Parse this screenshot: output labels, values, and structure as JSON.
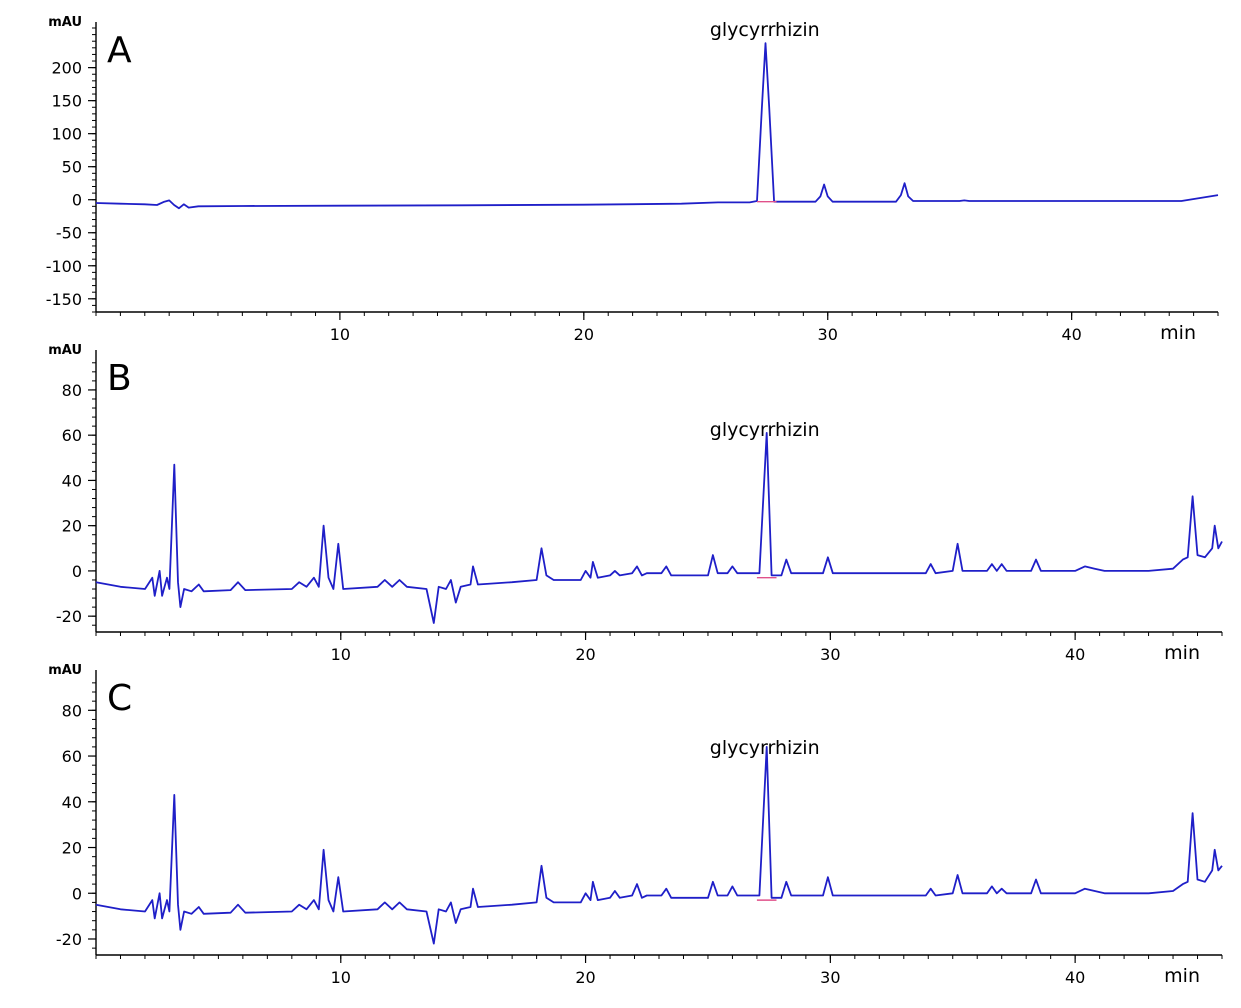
{
  "chart_data": [
    {
      "type": "line",
      "panel_label": "A",
      "ylabel": "mAU",
      "xlabel": "min",
      "xlim": [
        0,
        46
      ],
      "ylim": [
        -170,
        260
      ],
      "yticks": [
        -150,
        -100,
        -50,
        0,
        50,
        100,
        150,
        200
      ],
      "xticks": [
        10,
        20,
        30,
        40
      ],
      "annotation": {
        "text": "glycyrrhizin",
        "x": 27.5
      },
      "series": [
        {
          "color": "#1f1fc8",
          "points": [
            [
              0,
              -5
            ],
            [
              1,
              -6
            ],
            [
              2,
              -7
            ],
            [
              2.5,
              -8
            ],
            [
              2.8,
              -3
            ],
            [
              3.0,
              -1
            ],
            [
              3.2,
              -8
            ],
            [
              3.4,
              -13
            ],
            [
              3.6,
              -7
            ],
            [
              3.8,
              -12
            ],
            [
              4.2,
              -10
            ],
            [
              6,
              -9.5
            ],
            [
              10,
              -9
            ],
            [
              15,
              -8.5
            ],
            [
              20,
              -7.5
            ],
            [
              24,
              -6
            ],
            [
              25.5,
              -4
            ],
            [
              26.8,
              -4
            ],
            [
              27.1,
              -2
            ],
            [
              27.3,
              140
            ],
            [
              27.45,
              237
            ],
            [
              27.6,
              140
            ],
            [
              27.8,
              -3
            ],
            [
              28.3,
              -3
            ],
            [
              29.5,
              -3
            ],
            [
              29.7,
              5
            ],
            [
              29.85,
              23
            ],
            [
              30.0,
              5
            ],
            [
              30.2,
              -3
            ],
            [
              32.8,
              -3
            ],
            [
              33.0,
              7
            ],
            [
              33.15,
              25
            ],
            [
              33.3,
              5
            ],
            [
              33.5,
              -2
            ],
            [
              35.4,
              -2
            ],
            [
              35.6,
              -1
            ],
            [
              35.8,
              -2
            ],
            [
              44.5,
              -2
            ],
            [
              46,
              7
            ]
          ]
        }
      ]
    },
    {
      "type": "line",
      "panel_label": "B",
      "ylabel": "mAU",
      "xlabel": "min",
      "xlim": [
        0,
        46
      ],
      "ylim": [
        -27,
        95
      ],
      "yticks": [
        -20,
        0,
        20,
        40,
        60,
        80
      ],
      "xticks": [
        10,
        20,
        30,
        40
      ],
      "annotation": {
        "text": "glycyrrhizin",
        "x": 27.4
      },
      "series": [
        {
          "color": "#1f1fc8",
          "points": [
            [
              0,
              -5
            ],
            [
              1,
              -7
            ],
            [
              2,
              -8
            ],
            [
              2.3,
              -3
            ],
            [
              2.4,
              -11
            ],
            [
              2.6,
              0
            ],
            [
              2.7,
              -11
            ],
            [
              2.9,
              -3
            ],
            [
              3.0,
              -8
            ],
            [
              3.2,
              47
            ],
            [
              3.35,
              -5
            ],
            [
              3.45,
              -16
            ],
            [
              3.6,
              -8
            ],
            [
              3.9,
              -9
            ],
            [
              4.2,
              -6
            ],
            [
              4.4,
              -9
            ],
            [
              5.5,
              -8.5
            ],
            [
              5.8,
              -5
            ],
            [
              6.1,
              -8.5
            ],
            [
              8.0,
              -8
            ],
            [
              8.3,
              -5
            ],
            [
              8.6,
              -7
            ],
            [
              8.9,
              -3
            ],
            [
              9.1,
              -7
            ],
            [
              9.3,
              20
            ],
            [
              9.5,
              -3
            ],
            [
              9.7,
              -8
            ],
            [
              9.9,
              12
            ],
            [
              10.1,
              -8
            ],
            [
              11.5,
              -7
            ],
            [
              11.8,
              -4
            ],
            [
              12.1,
              -7
            ],
            [
              12.4,
              -4
            ],
            [
              12.7,
              -7
            ],
            [
              13.5,
              -8
            ],
            [
              13.8,
              -23
            ],
            [
              14.0,
              -7
            ],
            [
              14.3,
              -8
            ],
            [
              14.5,
              -4
            ],
            [
              14.7,
              -14
            ],
            [
              14.9,
              -7
            ],
            [
              15.3,
              -6
            ],
            [
              15.4,
              2
            ],
            [
              15.6,
              -6
            ],
            [
              17,
              -5
            ],
            [
              18.0,
              -4
            ],
            [
              18.2,
              10
            ],
            [
              18.4,
              -2
            ],
            [
              18.7,
              -4
            ],
            [
              19.8,
              -4
            ],
            [
              20.0,
              0
            ],
            [
              20.2,
              -3
            ],
            [
              20.3,
              4
            ],
            [
              20.5,
              -3
            ],
            [
              21.0,
              -2
            ],
            [
              21.2,
              0
            ],
            [
              21.4,
              -2
            ],
            [
              21.9,
              -1
            ],
            [
              22.1,
              2
            ],
            [
              22.3,
              -2
            ],
            [
              22.5,
              -1
            ],
            [
              23.1,
              -1
            ],
            [
              23.3,
              2
            ],
            [
              23.5,
              -2
            ],
            [
              25.0,
              -2
            ],
            [
              25.2,
              7
            ],
            [
              25.4,
              -1
            ],
            [
              25.8,
              -1
            ],
            [
              26.0,
              2
            ],
            [
              26.2,
              -1
            ],
            [
              27.1,
              -1
            ],
            [
              27.4,
              61
            ],
            [
              27.6,
              -2
            ],
            [
              28.0,
              -2
            ],
            [
              28.2,
              5
            ],
            [
              28.4,
              -1
            ],
            [
              29.7,
              -1
            ],
            [
              29.9,
              6
            ],
            [
              30.1,
              -1
            ],
            [
              32.5,
              -1
            ],
            [
              33.9,
              -1
            ],
            [
              34.1,
              3
            ],
            [
              34.3,
              -1
            ],
            [
              35.0,
              0
            ],
            [
              35.2,
              12
            ],
            [
              35.4,
              0
            ],
            [
              36.4,
              0
            ],
            [
              36.6,
              3
            ],
            [
              36.8,
              0
            ],
            [
              37.0,
              3
            ],
            [
              37.2,
              0
            ],
            [
              38.2,
              0
            ],
            [
              38.4,
              5
            ],
            [
              38.6,
              0
            ],
            [
              40.0,
              0
            ],
            [
              40.4,
              2
            ],
            [
              40.8,
              1
            ],
            [
              41.2,
              0
            ],
            [
              42,
              0
            ],
            [
              43,
              0
            ],
            [
              44,
              1
            ],
            [
              44.4,
              5
            ],
            [
              44.6,
              6
            ],
            [
              44.8,
              33
            ],
            [
              45.0,
              7
            ],
            [
              45.3,
              6
            ],
            [
              45.6,
              10
            ],
            [
              45.7,
              20
            ],
            [
              45.85,
              10
            ],
            [
              46,
              13
            ]
          ]
        }
      ]
    },
    {
      "type": "line",
      "panel_label": "C",
      "ylabel": "mAU",
      "xlabel": "min",
      "xlim": [
        0,
        46
      ],
      "ylim": [
        -27,
        95
      ],
      "yticks": [
        -20,
        0,
        20,
        40,
        60,
        80
      ],
      "xticks": [
        10,
        20,
        30,
        40
      ],
      "annotation": {
        "text": "glycyrrhizin",
        "x": 27.4
      },
      "series": [
        {
          "color": "#1f1fc8",
          "points": [
            [
              0,
              -5
            ],
            [
              1,
              -7
            ],
            [
              2,
              -8
            ],
            [
              2.3,
              -3
            ],
            [
              2.4,
              -11
            ],
            [
              2.6,
              0
            ],
            [
              2.7,
              -11
            ],
            [
              2.9,
              -3
            ],
            [
              3.0,
              -8
            ],
            [
              3.2,
              43
            ],
            [
              3.35,
              -5
            ],
            [
              3.45,
              -16
            ],
            [
              3.6,
              -8
            ],
            [
              3.9,
              -9
            ],
            [
              4.2,
              -6
            ],
            [
              4.4,
              -9
            ],
            [
              5.5,
              -8.5
            ],
            [
              5.8,
              -5
            ],
            [
              6.1,
              -8.5
            ],
            [
              8.0,
              -8
            ],
            [
              8.3,
              -5
            ],
            [
              8.6,
              -7
            ],
            [
              8.9,
              -3
            ],
            [
              9.1,
              -7
            ],
            [
              9.3,
              19
            ],
            [
              9.5,
              -3
            ],
            [
              9.7,
              -8
            ],
            [
              9.9,
              7
            ],
            [
              10.1,
              -8
            ],
            [
              11.5,
              -7
            ],
            [
              11.8,
              -4
            ],
            [
              12.1,
              -7
            ],
            [
              12.4,
              -4
            ],
            [
              12.7,
              -7
            ],
            [
              13.5,
              -8
            ],
            [
              13.8,
              -22
            ],
            [
              14.0,
              -7
            ],
            [
              14.3,
              -8
            ],
            [
              14.5,
              -4
            ],
            [
              14.7,
              -13
            ],
            [
              14.9,
              -7
            ],
            [
              15.3,
              -6
            ],
            [
              15.4,
              2
            ],
            [
              15.6,
              -6
            ],
            [
              17,
              -5
            ],
            [
              18.0,
              -4
            ],
            [
              18.2,
              12
            ],
            [
              18.4,
              -2
            ],
            [
              18.7,
              -4
            ],
            [
              19.8,
              -4
            ],
            [
              20.0,
              0
            ],
            [
              20.2,
              -3
            ],
            [
              20.3,
              5
            ],
            [
              20.5,
              -3
            ],
            [
              21.0,
              -2
            ],
            [
              21.2,
              1
            ],
            [
              21.4,
              -2
            ],
            [
              21.9,
              -1
            ],
            [
              22.1,
              4
            ],
            [
              22.3,
              -2
            ],
            [
              22.5,
              -1
            ],
            [
              23.1,
              -1
            ],
            [
              23.3,
              2
            ],
            [
              23.5,
              -2
            ],
            [
              25.0,
              -2
            ],
            [
              25.2,
              5
            ],
            [
              25.4,
              -1
            ],
            [
              25.8,
              -1
            ],
            [
              26.0,
              3
            ],
            [
              26.2,
              -1
            ],
            [
              27.1,
              -1
            ],
            [
              27.4,
              64
            ],
            [
              27.6,
              -2
            ],
            [
              28.0,
              -2
            ],
            [
              28.2,
              5
            ],
            [
              28.4,
              -1
            ],
            [
              29.7,
              -1
            ],
            [
              29.9,
              7
            ],
            [
              30.1,
              -1
            ],
            [
              32.5,
              -1
            ],
            [
              33.9,
              -1
            ],
            [
              34.1,
              2
            ],
            [
              34.3,
              -1
            ],
            [
              35.0,
              0
            ],
            [
              35.2,
              8
            ],
            [
              35.4,
              0
            ],
            [
              36.4,
              0
            ],
            [
              36.6,
              3
            ],
            [
              36.8,
              0
            ],
            [
              37.0,
              2
            ],
            [
              37.2,
              0
            ],
            [
              38.2,
              0
            ],
            [
              38.4,
              6
            ],
            [
              38.6,
              0
            ],
            [
              40.0,
              0
            ],
            [
              40.4,
              2
            ],
            [
              40.8,
              1
            ],
            [
              41.2,
              0
            ],
            [
              42,
              0
            ],
            [
              43,
              0
            ],
            [
              44,
              1
            ],
            [
              44.4,
              4
            ],
            [
              44.6,
              5
            ],
            [
              44.8,
              35
            ],
            [
              45.0,
              6
            ],
            [
              45.3,
              5
            ],
            [
              45.6,
              10
            ],
            [
              45.7,
              19
            ],
            [
              45.85,
              10
            ],
            [
              46,
              12
            ]
          ]
        }
      ]
    }
  ]
}
